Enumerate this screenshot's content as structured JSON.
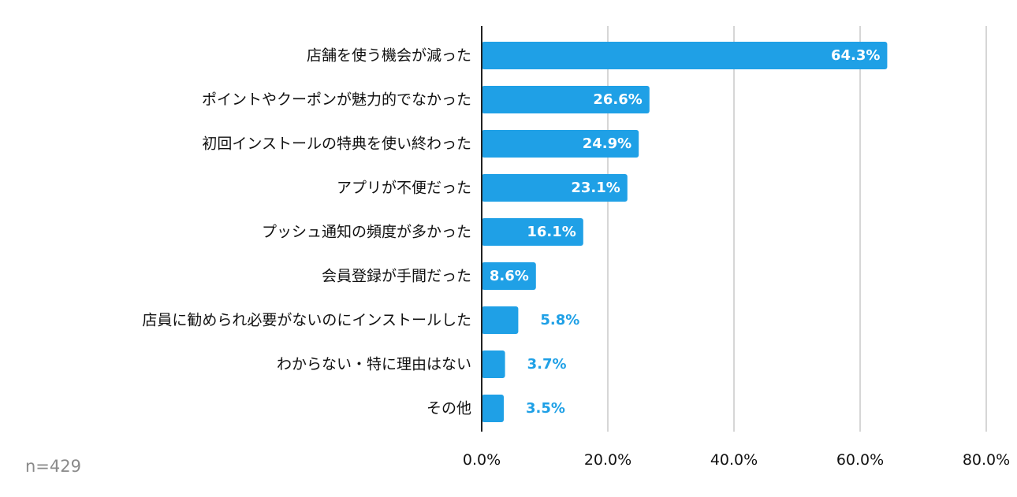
{
  "chart_data": {
    "type": "bar",
    "orientation": "horizontal",
    "categories": [
      "店舗を使う機会が減った",
      "ポイントやクーポンが魅力的でなかった",
      "初回インストールの特典を使い終わった",
      "アプリが不便だった",
      "プッシュ通知の頻度が多かった",
      "会員登録が手間だった",
      "店員に勧められ必要がないのにインストールした",
      "わからない・特に理由はない",
      "その他"
    ],
    "values": [
      64.3,
      26.6,
      24.9,
      23.1,
      16.1,
      8.6,
      5.8,
      3.7,
      3.5
    ],
    "value_labels": [
      "64.3%",
      "26.6%",
      "24.9%",
      "23.1%",
      "16.1%",
      "8.6%",
      "5.8%",
      "3.7%",
      "3.5%"
    ],
    "xlim": [
      0,
      80
    ],
    "xticks": [
      0,
      20,
      40,
      60,
      80
    ],
    "xtick_labels": [
      "0.0%",
      "20.0%",
      "40.0%",
      "60.0%",
      "80.0%"
    ],
    "grid": true,
    "title": "",
    "xlabel": "",
    "ylabel": "",
    "note": "n=429"
  },
  "colors": {
    "bar": "#1fa0e6",
    "label_inside": "#ffffff",
    "label_outside": "#1fa0e6",
    "grid": "#c8c8c8",
    "axis": "#222222",
    "text": "#111111",
    "note": "#8a8a8a"
  }
}
